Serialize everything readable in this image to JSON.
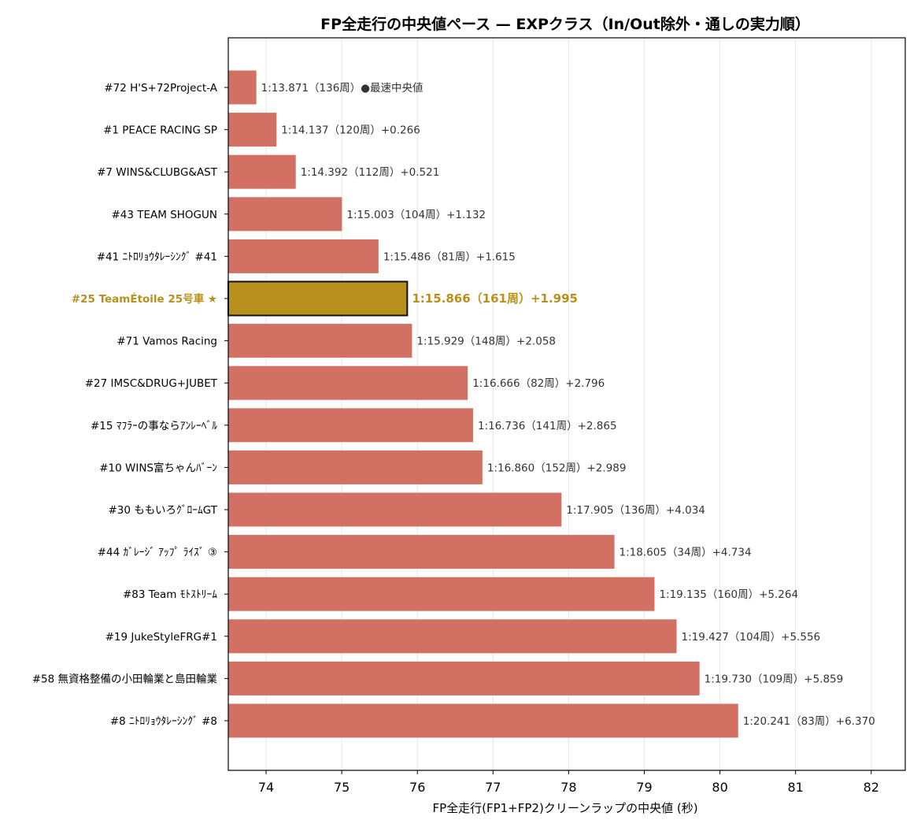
{
  "chart_data": {
    "type": "bar",
    "orientation": "horizontal",
    "title": "FP全走行の中央値ペース — EXPクラス（In/Out除外・通しの実力順）",
    "xlabel": "FP全走行(FP1+FP2)クリーンラップの中央値 (秒)",
    "xlim": [
      73.5,
      82.45
    ],
    "xticks": [
      74,
      75,
      76,
      77,
      78,
      79,
      80,
      81,
      82
    ],
    "grid": "vertical",
    "colors": {
      "bar": "#d27064",
      "highlight": "#b8901e",
      "highlight_edge": "#111111",
      "label": "#333333"
    },
    "highlight_index": 5,
    "categories": [
      "#72 H'S+72Project-A",
      "#1 PEACE RACING SP",
      "#7 WINS&CLUBG&AST",
      "#43 TEAM SHOGUN",
      "#41 ﾆﾄﾛﾘｮｳﾀﾚｰｼﾝｸﾞ #41",
      "#25 TeamÉtoile 25号車 ★",
      "#71 Vamos Racing",
      "#27 IMSC&DRUG+JUBET",
      "#15 ﾏﾌﾗｰの事ならｱﾝﾚｰﾍﾞﾙ",
      "#10 WINS富ちゃんﾊﾞｰﾝ",
      "#30 ももいろｸﾞﾛｰﾑGT",
      "#44 ｶﾞﾚｰｼﾞ ｱｯﾌﾟ ﾗｲｽﾞ ③",
      "#83 Team ﾓﾄｽﾄﾘｰﾑ",
      "#19 JukeStyleFRG#1",
      "#58 無資格整備の小田輪業と島田輪業",
      "#8 ﾆﾄﾛﾘｮｳﾀﾚｰｼﾝｸﾞ #8"
    ],
    "values": [
      73.871,
      74.137,
      74.392,
      75.003,
      75.486,
      75.866,
      75.929,
      76.666,
      76.736,
      76.86,
      77.905,
      78.605,
      79.135,
      79.427,
      79.73,
      80.241
    ],
    "data_labels": [
      "1:13.871（136周）●最速中央値",
      "1:14.137（120周）+0.266",
      "1:14.392（112周）+0.521",
      "1:15.003（104周）+1.132",
      "1:15.486（81周）+1.615",
      "1:15.866（161周）+1.995",
      "1:15.929（148周）+2.058",
      "1:16.666（82周）+2.796",
      "1:16.736（141周）+2.865",
      "1:16.860（152周）+2.989",
      "1:17.905（136周）+4.034",
      "1:18.605（34周）+4.734",
      "1:19.135（160周）+5.264",
      "1:19.427（104周）+5.556",
      "1:19.730（109周）+5.859",
      "1:20.241（83周）+6.370"
    ]
  }
}
